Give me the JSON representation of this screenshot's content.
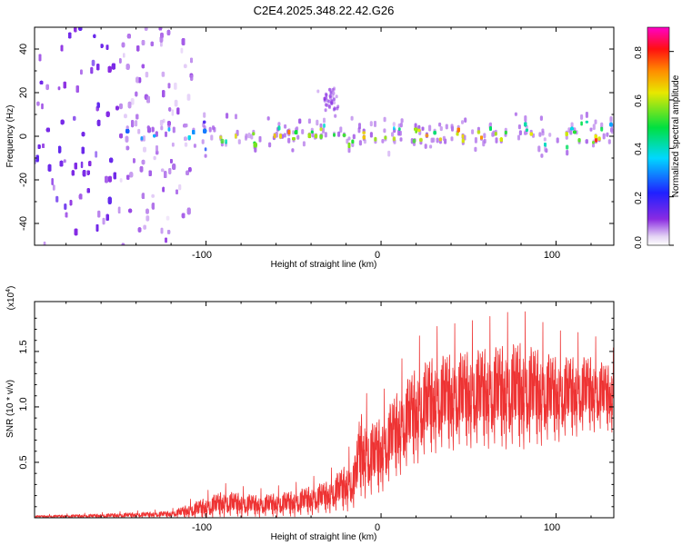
{
  "title": "C2E4.2025.348.22.42.G26",
  "chart_data": [
    {
      "type": "heatmap",
      "title": "C2E4.2025.348.22.42.G26",
      "xlabel": "Height of straight line (km)",
      "ylabel": "Frequency (Hz)",
      "xlim": [
        -198,
        133
      ],
      "ylim": [
        -50,
        50
      ],
      "xticks": [
        -100,
        0,
        100
      ],
      "xtick_labels": [
        "-100",
        "0",
        "100"
      ],
      "yticks": [
        -40,
        -20,
        0,
        20,
        40
      ],
      "ytick_labels": [
        "-40",
        "-20",
        "0",
        "20",
        "40"
      ],
      "colorbar": {
        "label": "Normalized spectral amplitude",
        "range": [
          0,
          0.9
        ],
        "ticks": [
          0,
          0.2,
          0.4,
          0.6,
          0.8
        ],
        "tick_labels": [
          "0.0",
          "0.2",
          "0.4",
          "0.6",
          "0.8"
        ],
        "colormap": "rainbow (violet-blue-cyan-green-yellow-orange-red-magenta)"
      },
      "features": {
        "noise_region_x": [
          -198,
          -108
        ],
        "noise_region_dense_x": [
          -198,
          -150
        ],
        "signal_band_center_hz": 0,
        "signal_band_halfwidth_hz": 8,
        "signal_onset_x": -145,
        "bright_core_x": [
          -100,
          133
        ],
        "bump_near_x": -30
      }
    },
    {
      "type": "line",
      "xlabel": "Height of straight line (km)",
      "ylabel": "SNR (10 * v/v)",
      "y_multiplier_label": "(x10",
      "y_multiplier_exponent": "4",
      "xlim": [
        -198,
        133
      ],
      "ylim": [
        0,
        1.95
      ],
      "xticks": [
        -100,
        0,
        100
      ],
      "xtick_labels": [
        "-100",
        "0",
        "100"
      ],
      "yticks": [
        0.5,
        1.0,
        1.5
      ],
      "ytick_labels": [
        "0.5",
        "1.0",
        "1.5"
      ],
      "color": "#ee3333",
      "series": [
        {
          "name": "SNR",
          "envelope_x": [
            -198,
            -160,
            -120,
            -100,
            -90,
            -70,
            -50,
            -30,
            -15,
            -12,
            -5,
            0,
            10,
            20,
            30,
            50,
            80,
            100,
            120,
            133
          ],
          "envelope_mid": [
            0.01,
            0.015,
            0.03,
            0.08,
            0.12,
            0.1,
            0.12,
            0.18,
            0.3,
            0.55,
            0.5,
            0.55,
            0.75,
            0.9,
            1.0,
            1.05,
            1.08,
            1.05,
            1.1,
            1.05
          ],
          "envelope_amp": [
            0.01,
            0.02,
            0.03,
            0.1,
            0.12,
            0.1,
            0.12,
            0.15,
            0.25,
            0.4,
            0.35,
            0.35,
            0.4,
            0.45,
            0.45,
            0.45,
            0.5,
            0.4,
            0.35,
            0.3
          ]
        }
      ]
    }
  ]
}
